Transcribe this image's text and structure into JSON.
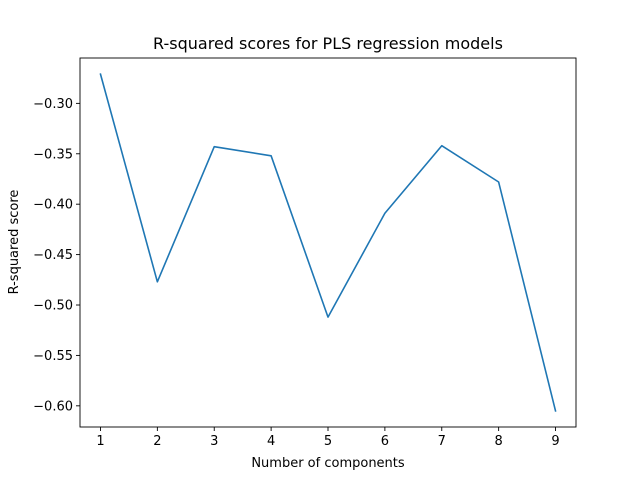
{
  "chart_data": {
    "type": "line",
    "title": "R-squared scores for PLS regression models",
    "xlabel": "Number of components",
    "ylabel": "R-squared score",
    "x": [
      1,
      2,
      3,
      4,
      5,
      6,
      7,
      8,
      9
    ],
    "series": [
      {
        "values": [
          -0.271,
          -0.477,
          -0.343,
          -0.352,
          -0.512,
          -0.409,
          -0.342,
          -0.378,
          -0.605
        ]
      }
    ],
    "xlim": [
      0.64,
      9.36
    ],
    "ylim": [
      -0.621,
      -0.255
    ],
    "xticks": [
      1,
      2,
      3,
      4,
      5,
      6,
      7,
      8,
      9
    ],
    "xtick_labels": [
      "1",
      "2",
      "3",
      "4",
      "5",
      "6",
      "7",
      "8",
      "9"
    ],
    "yticks": [
      -0.3,
      -0.35,
      -0.4,
      -0.45,
      -0.5,
      -0.55,
      -0.6
    ],
    "ytick_labels": [
      "−0.30",
      "−0.35",
      "−0.40",
      "−0.45",
      "−0.50",
      "−0.55",
      "−0.60"
    ],
    "grid": false,
    "line_color": "#1f77b4"
  }
}
